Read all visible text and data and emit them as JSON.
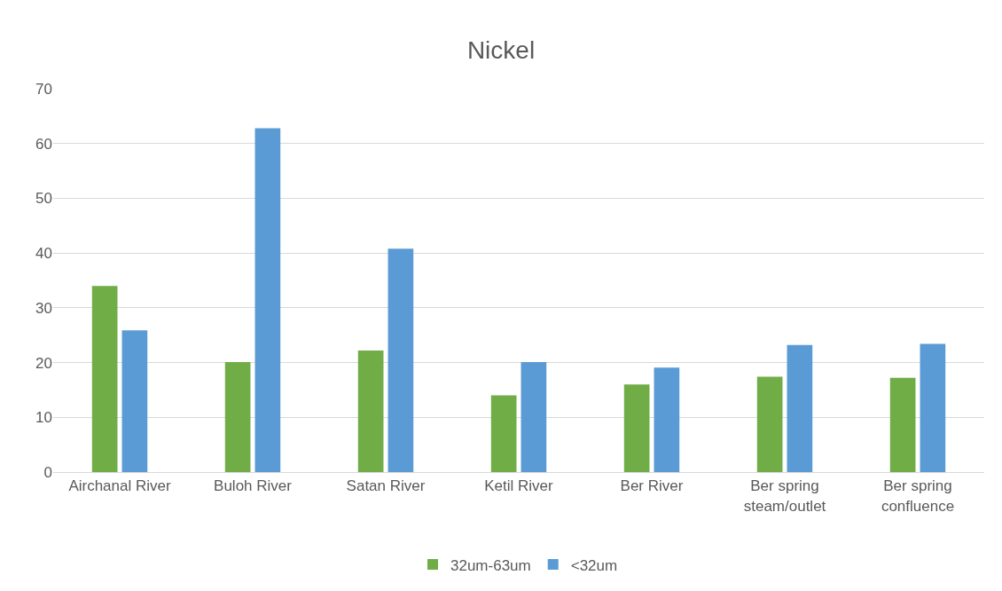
{
  "chart_data": {
    "type": "bar",
    "title": "Nickel",
    "categories": [
      "Airchanal River",
      "Buloh River",
      "Satan River",
      "Ketil River",
      "Ber River",
      "Ber spring steam/outlet",
      "Ber spring confluence"
    ],
    "series": [
      {
        "name": "32um-63um",
        "color": "#70ad47",
        "values": [
          34.0,
          20.1,
          22.2,
          14.0,
          16.0,
          17.4,
          17.2
        ]
      },
      {
        "name": "<32um",
        "color": "#5b9bd5",
        "values": [
          25.9,
          62.8,
          40.8,
          20.1,
          19.1,
          23.2,
          23.4
        ]
      }
    ],
    "ylim": [
      0,
      70
    ],
    "yticks": [
      0,
      10,
      20,
      30,
      40,
      50,
      60,
      70
    ],
    "grid": "y",
    "legend": "bottom"
  }
}
